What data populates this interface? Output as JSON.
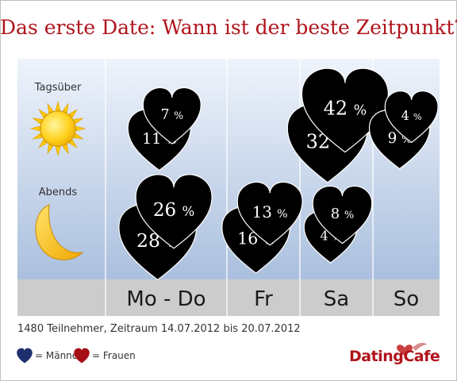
{
  "title": "Das erste Date: Wann ist der beste Zeitpunkt?",
  "row_labels": [
    "Tagsüber",
    "Abends"
  ],
  "footnote": "1480 Teilnehmer, Zeitraum 14.07.2012 bis 20.07.2012",
  "legend": {
    "men": "= Männer",
    "women": "= Frauen"
  },
  "brand": "DatingCafe",
  "colors": {
    "men": "#1f2f6e",
    "women": "#a50e14",
    "background_top": "#eef3fb",
    "background_bottom": "#9fb7d9",
    "label_band": "#cccccc"
  },
  "icons": {
    "day": "sun-icon",
    "evening": "moon-icon"
  },
  "chart_data": {
    "type": "table",
    "title": "Das erste Date: Wann ist der beste Zeitpunkt?",
    "categories": [
      "Mo - Do",
      "Fr",
      "Sa",
      "So"
    ],
    "rows": [
      "Tagsüber",
      "Abends"
    ],
    "series": [
      {
        "name": "Männer",
        "values": {
          "Tagsüber": [
            7,
            null,
            42,
            4
          ],
          "Abends": [
            26,
            13,
            8,
            null
          ]
        }
      },
      {
        "name": "Frauen",
        "values": {
          "Tagsüber": [
            11,
            null,
            32,
            9
          ],
          "Abends": [
            28,
            16,
            4,
            null
          ]
        }
      }
    ],
    "unit": "%"
  }
}
